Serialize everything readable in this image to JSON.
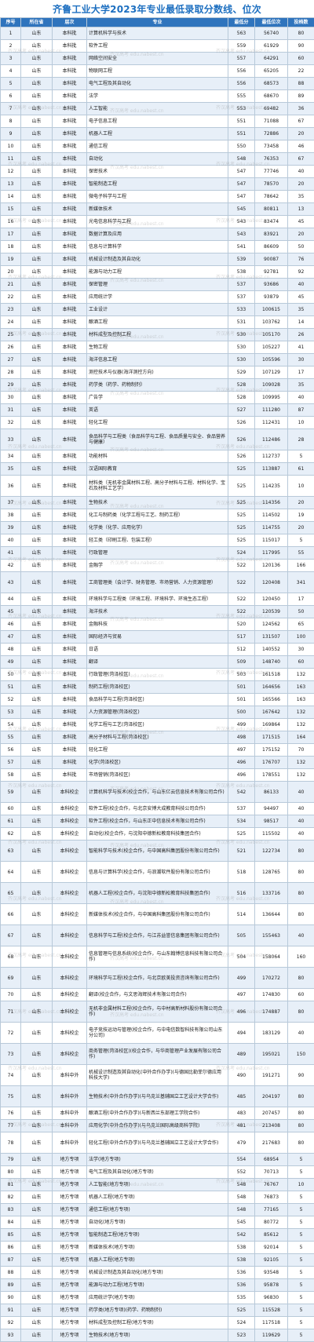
{
  "title": "齐鲁工业大学2023年专业最低录取分数线、位次",
  "headers": [
    "序号",
    "所在省",
    "层次",
    "专业",
    "最低分",
    "最低位次",
    "投档数"
  ],
  "watermark": "齐汉高考 edu.nabest.cn",
  "rows": [
    [
      "1",
      "山东",
      "本科批",
      "计算机科学与技术",
      "563",
      "56740",
      "80"
    ],
    [
      "2",
      "山东",
      "本科批",
      "软件工程",
      "559",
      "61929",
      "90"
    ],
    [
      "3",
      "山东",
      "本科批",
      "网络空间安全",
      "557",
      "64291",
      "60"
    ],
    [
      "4",
      "山东",
      "本科批",
      "物联网工程",
      "556",
      "65205",
      "22"
    ],
    [
      "5",
      "山东",
      "本科批",
      "电气工程及其自动化",
      "556",
      "68573",
      "88"
    ],
    [
      "6",
      "山东",
      "本科批",
      "法学",
      "555",
      "68670",
      "89"
    ],
    [
      "7",
      "山东",
      "本科批",
      "人工智能",
      "553",
      "69482",
      "36"
    ],
    [
      "8",
      "山东",
      "本科批",
      "电子信息工程",
      "551",
      "71088",
      "67"
    ],
    [
      "9",
      "山东",
      "本科批",
      "机器人工程",
      "551",
      "72886",
      "20"
    ],
    [
      "10",
      "山东",
      "本科批",
      "通信工程",
      "550",
      "73458",
      "46"
    ],
    [
      "11",
      "山东",
      "本科批",
      "自动化",
      "548",
      "76353",
      "67"
    ],
    [
      "12",
      "山东",
      "本科批",
      "保密技术",
      "547",
      "77746",
      "40"
    ],
    [
      "13",
      "山东",
      "本科批",
      "智能制造工程",
      "547",
      "78570",
      "20"
    ],
    [
      "14",
      "山东",
      "本科批",
      "微电子科学与工程",
      "547",
      "78642",
      "35"
    ],
    [
      "15",
      "山东",
      "本科批",
      "新媒体技术",
      "545",
      "80811",
      "13"
    ],
    [
      "16",
      "山东",
      "本科批",
      "光电信息科学与工程",
      "543",
      "83474",
      "45"
    ],
    [
      "17",
      "山东",
      "本科批",
      "数据计算及应用",
      "543",
      "83921",
      "20"
    ],
    [
      "18",
      "山东",
      "本科批",
      "信息与计算科学",
      "541",
      "86609",
      "50"
    ],
    [
      "19",
      "山东",
      "本科批",
      "机械设计制造及其自动化",
      "539",
      "90087",
      "76"
    ],
    [
      "20",
      "山东",
      "本科批",
      "能源与动力工程",
      "538",
      "92781",
      "92"
    ],
    [
      "21",
      "山东",
      "本科批",
      "保密管理",
      "537",
      "93686",
      "40"
    ],
    [
      "22",
      "山东",
      "本科批",
      "应用统计学",
      "537",
      "93879",
      "45"
    ],
    [
      "23",
      "山东",
      "本科批",
      "工业设计",
      "533",
      "100615",
      "35"
    ],
    [
      "24",
      "山东",
      "本科批",
      "酿酒工程",
      "531",
      "103762",
      "14"
    ],
    [
      "25",
      "山东",
      "本科批",
      "材料成型及控制工程",
      "530",
      "105170",
      "26"
    ],
    [
      "26",
      "山东",
      "本科批",
      "生物工程",
      "530",
      "105227",
      "41"
    ],
    [
      "27",
      "山东",
      "本科批",
      "海洋信息工程",
      "530",
      "105596",
      "30"
    ],
    [
      "28",
      "山东",
      "本科批",
      "测控技术与仪器(海洋测控方向)",
      "529",
      "107129",
      "17"
    ],
    [
      "29",
      "山东",
      "本科批",
      "药学类（药学、药物制剂）",
      "528",
      "109028",
      "35"
    ],
    [
      "30",
      "山东",
      "本科批",
      "广告学",
      "528",
      "109995",
      "40"
    ],
    [
      "31",
      "山东",
      "本科批",
      "英语",
      "527",
      "111280",
      "87"
    ],
    [
      "32",
      "山东",
      "本科批",
      "轻化工程",
      "526",
      "112431",
      "10"
    ],
    [
      "33",
      "山东",
      "本科批",
      "食品科学与工程类（食品科学与工程、食品质量与安全、食品营养与健康）",
      "526",
      "112486",
      "28"
    ],
    [
      "34",
      "山东",
      "本科批",
      "功能材料",
      "526",
      "112737",
      "5"
    ],
    [
      "35",
      "山东",
      "本科批",
      "汉语国际教育",
      "525",
      "113887",
      "61"
    ],
    [
      "36",
      "山东",
      "本科批",
      "材料类（无机非金属材料工程、高分子材料与工程、材料化学、宝石及材料工艺学）",
      "525",
      "114235",
      "10"
    ],
    [
      "37",
      "山东",
      "本科批",
      "生物技术",
      "525",
      "114356",
      "20"
    ],
    [
      "38",
      "山东",
      "本科批",
      "化工与制药类（化学工程与工艺、制药工程）",
      "525",
      "114502",
      "19"
    ],
    [
      "39",
      "山东",
      "本科批",
      "化学类（化学、应用化学）",
      "525",
      "114755",
      "20"
    ],
    [
      "40",
      "山东",
      "本科批",
      "轻工类（印刷工程、包装工程）",
      "525",
      "115017",
      "5"
    ],
    [
      "41",
      "山东",
      "本科批",
      "行政管理",
      "524",
      "117995",
      "55"
    ],
    [
      "42",
      "山东",
      "本科批",
      "金融学",
      "522",
      "120136",
      "166"
    ],
    [
      "43",
      "山东",
      "本科批",
      "工商管理类（会计学、财务管理、市场营销、人力资源管理）",
      "522",
      "120408",
      "341"
    ],
    [
      "44",
      "山东",
      "本科批",
      "环境科学与工程类（环境工程、环境科学、环境生态工程）",
      "522",
      "120450",
      "17"
    ],
    [
      "45",
      "山东",
      "本科批",
      "海洋技术",
      "522",
      "120539",
      "50"
    ],
    [
      "46",
      "山东",
      "本科批",
      "金融科技",
      "520",
      "124562",
      "65"
    ],
    [
      "47",
      "山东",
      "本科批",
      "国际经济与贸易",
      "517",
      "131507",
      "100"
    ],
    [
      "48",
      "山东",
      "本科批",
      "日语",
      "512",
      "140552",
      "30"
    ],
    [
      "49",
      "山东",
      "本科批",
      "翻译",
      "509",
      "148740",
      "60"
    ],
    [
      "50",
      "山东",
      "本科批",
      "行政管理(菏泽校区)",
      "503",
      "161518",
      "132"
    ],
    [
      "51",
      "山东",
      "本科批",
      "制药工程(菏泽校区)",
      "501",
      "164656",
      "163"
    ],
    [
      "52",
      "山东",
      "本科批",
      "食品科学与工程(菏泽校区)",
      "501",
      "165566",
      "163"
    ],
    [
      "53",
      "山东",
      "本科批",
      "人力资源管理(菏泽校区)",
      "500",
      "167642",
      "132"
    ],
    [
      "54",
      "山东",
      "本科批",
      "化学工程与工艺(菏泽校区)",
      "499",
      "169864",
      "132"
    ],
    [
      "55",
      "山东",
      "本科批",
      "高分子材料与工程(菏泽校区)",
      "498",
      "171515",
      "164"
    ],
    [
      "56",
      "山东",
      "本科批",
      "轻化工程",
      "497",
      "175152",
      "70"
    ],
    [
      "57",
      "山东",
      "本科批",
      "化学(菏泽校区)",
      "496",
      "176707",
      "132"
    ],
    [
      "58",
      "山东",
      "本科批",
      "市场营销(菏泽校区)",
      "496",
      "178551",
      "132"
    ],
    [
      "59",
      "山东",
      "本科校企",
      "计算机科学与技术(校企合作，与山东亿云信息技术有限公司合作)",
      "542",
      "86133",
      "40"
    ],
    [
      "60",
      "山东",
      "本科校企",
      "软件工程(校企合作，与北京安博大成教育科技公司合作)",
      "537",
      "94497",
      "40"
    ],
    [
      "61",
      "山东",
      "本科校企",
      "软件工程(校企合作，与山东正中信息技术有限公司合作)",
      "534",
      "98517",
      "40"
    ],
    [
      "62",
      "山东",
      "本科校企",
      "自动化(校企合作，与沈阳中德新松教育科技集团合作)",
      "525",
      "115502",
      "40"
    ],
    [
      "63",
      "山东",
      "本科校企",
      "智能科学与技术(校企合作，与中国高科集团股份有限公司合作)",
      "521",
      "122734",
      "80"
    ],
    [
      "64",
      "山东",
      "本科校企",
      "信息与计算科学(校企合作，与浪潮软件股份有限公司合作)",
      "518",
      "128765",
      "80"
    ],
    [
      "65",
      "山东",
      "本科校企",
      "机器人工程(校企合作，与沈阳中德新松教育科技集团合作)",
      "516",
      "133716",
      "80"
    ],
    [
      "66",
      "山东",
      "本科校企",
      "新媒体技术(校企合作，与中国高科集团股份有限公司合作)",
      "514",
      "136644",
      "80"
    ],
    [
      "67",
      "山东",
      "本科校企",
      "信息科学与工程(校企合作，与江苏益誉信息集团有限公司合作)",
      "505",
      "155463",
      "40"
    ],
    [
      "68",
      "山东",
      "本科校企",
      "信息管理与信息系统(校企合作，与山东翰博信息科技有限公司合作)",
      "504",
      "158064",
      "160"
    ],
    [
      "69",
      "山东",
      "本科校企",
      "环境科学与工程(校企合作，与北京欧美投资咨询有限公司合作)",
      "499",
      "170272",
      "80"
    ],
    [
      "70",
      "山东",
      "本科校企",
      "翻译(校企合作，与文思海辉技术有限公司合作)",
      "497",
      "174830",
      "60"
    ],
    [
      "71",
      "山东",
      "本科校企",
      "无机非金属材料工程(校企合作，与中材高新材料股份有限公司合作)",
      "496",
      "174887",
      "80"
    ],
    [
      "72",
      "山东",
      "本科校企",
      "电子竞技运动与管理(校企合作，与中电信数智科技有限公司山东分公司)",
      "494",
      "183129",
      "40"
    ],
    [
      "73",
      "山东",
      "本科校企",
      "商务管理(菏泽校区)(校企合作，与华商管理产业发展有限公司合作)",
      "489",
      "195021",
      "150"
    ],
    [
      "74",
      "山东",
      "本科中外",
      "机械设计制造及其自动化(中外合作办学)(与德国比勒菲尔德应用科技大学)",
      "490",
      "191271",
      "90"
    ],
    [
      "75",
      "山东",
      "本科中外",
      "生物技术(中外合作办学)(与乌克兰基辅国立工艺设计大学合作)",
      "485",
      "204197",
      "80"
    ],
    [
      "76",
      "山东",
      "本科中外",
      "酿酒工程(中外合作办学)(与新西兰东部理工学院合作)",
      "483",
      "207457",
      "80"
    ],
    [
      "77",
      "山东",
      "本科中外",
      "应用化学(中外合作办学)(与乌克兰国际高级商科学院)",
      "481",
      "213408",
      "80"
    ],
    [
      "78",
      "山东",
      "本科中外",
      "轻化工程(中外合作办学)(与乌克兰基辅国立工艺设计大学合作)",
      "479",
      "217683",
      "80"
    ],
    [
      "79",
      "山东",
      "地方专项",
      "法学(地方专项)",
      "554",
      "68954",
      "5"
    ],
    [
      "80",
      "山东",
      "地方专项",
      "电气工程及其自动化(地方专项)",
      "552",
      "70713",
      "5"
    ],
    [
      "81",
      "山东",
      "地方专项",
      "人工智能(地方专项)",
      "548",
      "76767",
      "10"
    ],
    [
      "82",
      "山东",
      "地方专项",
      "机器人工程(地方专项)",
      "548",
      "76873",
      "5"
    ],
    [
      "83",
      "山东",
      "地方专项",
      "通信工程(地方专项)",
      "548",
      "77165",
      "5"
    ],
    [
      "84",
      "山东",
      "地方专项",
      "自动化(地方专项)",
      "545",
      "80772",
      "5"
    ],
    [
      "85",
      "山东",
      "地方专项",
      "智能制造工程(地方专项)",
      "542",
      "85612",
      "5"
    ],
    [
      "86",
      "山东",
      "地方专项",
      "新媒体技术(地方专项)",
      "538",
      "92014",
      "5"
    ],
    [
      "87",
      "山东",
      "地方专项",
      "机器人工程(地方专项)",
      "538",
      "92105",
      "5"
    ],
    [
      "88",
      "山东",
      "地方专项",
      "机械设计制造及其自动化(地方专项)",
      "536",
      "93548",
      "5"
    ],
    [
      "89",
      "山东",
      "地方专项",
      "能源与动力工程(地方专项)",
      "536",
      "95878",
      "5"
    ],
    [
      "90",
      "山东",
      "地方专项",
      "应用统计学(地方专项)",
      "535",
      "96830",
      "5"
    ],
    [
      "91",
      "山东",
      "地方专项",
      "药学类(地方专项)(药学、药物制剂)",
      "525",
      "115528",
      "5"
    ],
    [
      "92",
      "山东",
      "地方专项",
      "材料成型及控制工程(地方专项)",
      "524",
      "117518",
      "5"
    ],
    [
      "93",
      "山东",
      "地方专项",
      "生物技术(地方专项)",
      "523",
      "119629",
      "5"
    ]
  ]
}
